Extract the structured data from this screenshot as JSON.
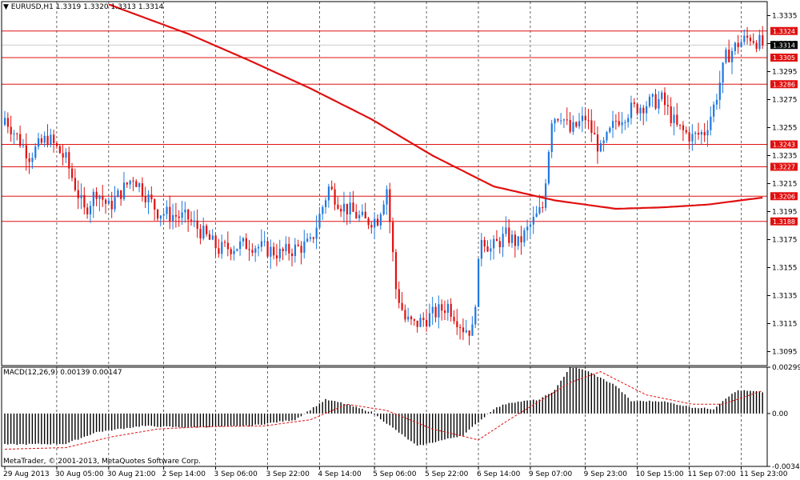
{
  "main_header": {
    "symbol": "EURUSD,H1",
    "open": "1.3319",
    "high": "1.3320",
    "low": "1.3313",
    "close": "1.3314"
  },
  "macd_header": {
    "name": "MACD(12,26,9)",
    "main": "0.00139",
    "signal": "0.00147"
  },
  "copyright": "MetaTrader, © 2001-2013, MetaQuotes Software Corp.",
  "colors": {
    "background": "#ffffff",
    "bull": "#1e78e0",
    "bear": "#e01010",
    "ma": "#e01010",
    "level": "#e01010",
    "level_label_bg": "#e01010",
    "current_price_bg": "#000000",
    "macd_hist": "#000000",
    "macd_signal": "#e01010",
    "grid": "#000000"
  },
  "chart_data": [
    {
      "type": "candlestick",
      "title": "EURUSD,H1",
      "ylim": [
        1.3085,
        1.3345
      ],
      "y_ticks": [
        "1.3335",
        "1.3315",
        "1.3295",
        "1.3275",
        "1.3255",
        "1.3235",
        "1.3215",
        "1.3195",
        "1.3175",
        "1.3155",
        "1.3135",
        "1.3115",
        "1.3095"
      ],
      "x_ticks": [
        "29 Aug 2013",
        "30 Aug 05:00",
        "30 Aug 21:00",
        "2 Sep 14:00",
        "3 Sep 06:00",
        "3 Sep 22:00",
        "4 Sep 14:00",
        "5 Sep 06:00",
        "5 Sep 22:00",
        "6 Sep 14:00",
        "9 Sep 07:00",
        "9 Sep 23:00",
        "10 Sep 15:00",
        "11 Sep 07:00",
        "11 Sep 23:00"
      ],
      "grid": "vertical dashed",
      "current_price": "1.3314",
      "horizontal_levels": [
        "1.3324",
        "1.3305",
        "1.3286",
        "1.3243",
        "1.3227",
        "1.3206",
        "1.3188"
      ],
      "moving_average": {
        "bar_index": [
          34,
          60,
          80,
          100,
          120,
          140,
          160,
          180,
          200,
          215,
          230,
          248
        ],
        "value": [
          1.3343,
          1.3322,
          1.3303,
          1.3283,
          1.3261,
          1.3235,
          1.3213,
          1.3203,
          1.3197,
          1.3198,
          1.32,
          1.3205
        ]
      },
      "anchors": {
        "bar_index": [
          0,
          8,
          14,
          20,
          26,
          30,
          34,
          42,
          50,
          60,
          70,
          80,
          90,
          100,
          106,
          110,
          118,
          122,
          125,
          128,
          131,
          134,
          139,
          145,
          150,
          153,
          156,
          159,
          164,
          168,
          172,
          176,
          179,
          182,
          185,
          190,
          195,
          200,
          205,
          210,
          215,
          220,
          225,
          229,
          232,
          236,
          240,
          244,
          248
        ],
        "close": [
          1.3262,
          1.3235,
          1.3248,
          1.3232,
          1.3195,
          1.321,
          1.3198,
          1.322,
          1.3195,
          1.319,
          1.3168,
          1.3172,
          1.3165,
          1.3172,
          1.3212,
          1.32,
          1.3188,
          1.319,
          1.3212,
          1.314,
          1.3118,
          1.3114,
          1.312,
          1.3128,
          1.3112,
          1.311,
          1.3178,
          1.3168,
          1.3178,
          1.3172,
          1.3185,
          1.3198,
          1.3262,
          1.3265,
          1.3252,
          1.3262,
          1.3238,
          1.326,
          1.3268,
          1.3272,
          1.3275,
          1.3255,
          1.3248,
          1.3252,
          1.327,
          1.3305,
          1.3315,
          1.332,
          1.3314
        ]
      },
      "seed": 7,
      "bars": 249
    },
    {
      "type": "histogram",
      "title": "MACD(12,26,9)",
      "ylim": [
        -0.00341,
        0.00299
      ],
      "y_ticks": [
        "0.00299",
        "0.00",
        "-0.00341"
      ],
      "main_values_by_bar": {
        "bar_index": [
          0,
          20,
          30,
          45,
          60,
          80,
          95,
          105,
          110,
          120,
          135,
          150,
          160,
          165,
          175,
          180,
          185,
          190,
          200,
          205,
          215,
          225,
          232,
          236,
          240,
          248
        ],
        "value": [
          -0.002,
          -0.00195,
          -0.0012,
          -0.0008,
          -0.0009,
          -0.0008,
          -0.0004,
          0.0009,
          0.0007,
          0.0001,
          -0.0021,
          -0.0014,
          0.0003,
          0.0007,
          0.0009,
          0.0015,
          0.003,
          0.0028,
          0.0018,
          0.0008,
          0.0008,
          0.0004,
          0.0003,
          0.001,
          0.0015,
          0.00139
        ]
      },
      "signal_values_by_bar": {
        "bar_index": [
          0,
          20,
          35,
          50,
          65,
          85,
          100,
          112,
          125,
          140,
          155,
          165,
          175,
          185,
          195,
          210,
          225,
          235,
          248
        ],
        "value": [
          -0.0023,
          -0.0022,
          -0.0015,
          -0.001,
          -0.00085,
          -0.0008,
          -0.0004,
          0.0006,
          0.0002,
          -0.001,
          -0.0017,
          -0.0004,
          0.0008,
          0.002,
          0.0027,
          0.0012,
          0.0006,
          0.0006,
          0.00147
        ]
      }
    }
  ]
}
